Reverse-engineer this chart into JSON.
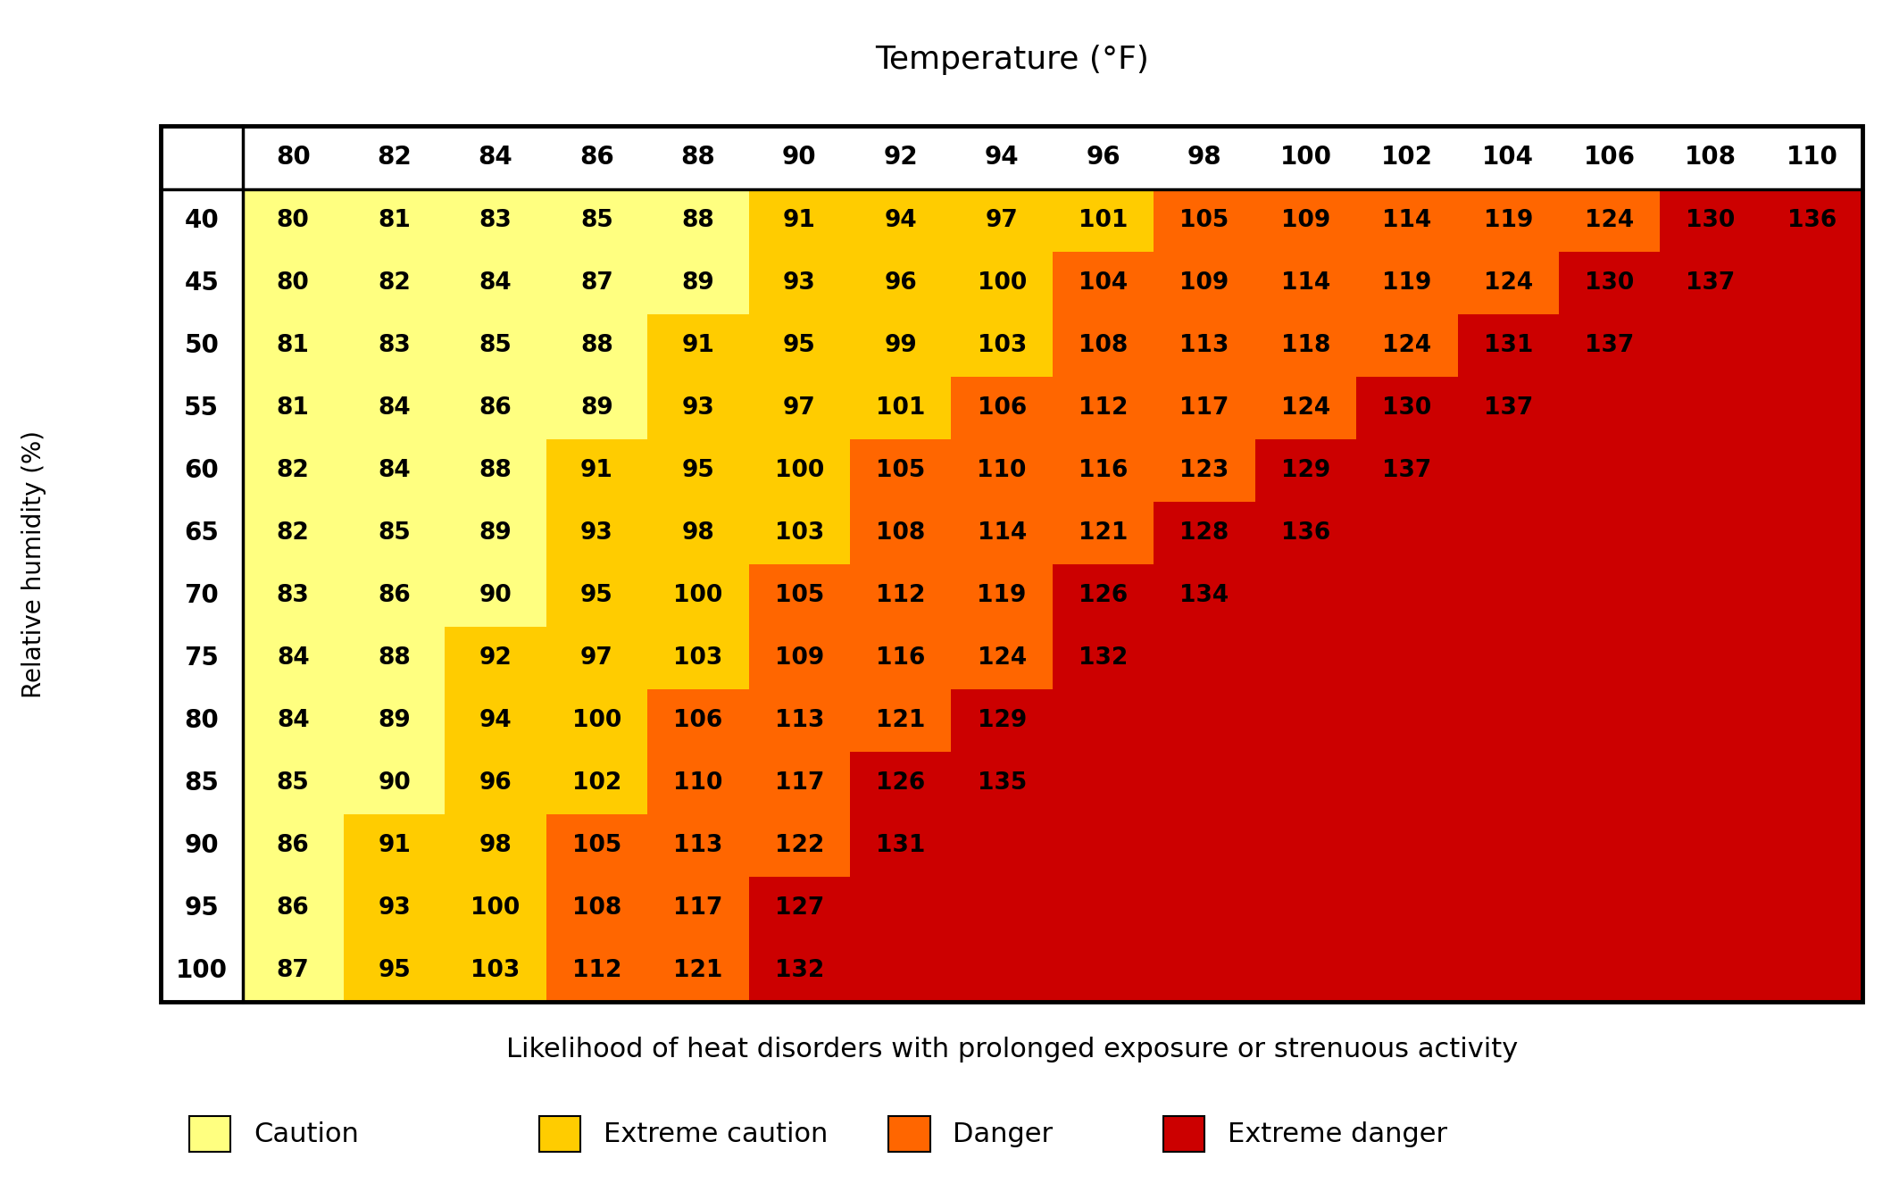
{
  "title": "Temperature (°F)",
  "ylabel": "Relative humidity (%)",
  "temp_labels": [
    80,
    82,
    84,
    86,
    88,
    90,
    92,
    94,
    96,
    98,
    100,
    102,
    104,
    106,
    108,
    110
  ],
  "humidity_labels": [
    40,
    45,
    50,
    55,
    60,
    65,
    70,
    75,
    80,
    85,
    90,
    95,
    100
  ],
  "heat_index": [
    [
      80,
      81,
      83,
      85,
      88,
      91,
      94,
      97,
      101,
      105,
      109,
      114,
      119,
      124,
      130,
      136
    ],
    [
      80,
      82,
      84,
      87,
      89,
      93,
      96,
      100,
      104,
      109,
      114,
      119,
      124,
      130,
      137,
      null
    ],
    [
      81,
      83,
      85,
      88,
      91,
      95,
      99,
      103,
      108,
      113,
      118,
      124,
      131,
      137,
      null,
      null
    ],
    [
      81,
      84,
      86,
      89,
      93,
      97,
      101,
      106,
      112,
      117,
      124,
      130,
      137,
      null,
      null,
      null
    ],
    [
      82,
      84,
      88,
      91,
      95,
      100,
      105,
      110,
      116,
      123,
      129,
      137,
      null,
      null,
      null,
      null
    ],
    [
      82,
      85,
      89,
      93,
      98,
      103,
      108,
      114,
      121,
      128,
      136,
      null,
      null,
      null,
      null,
      null
    ],
    [
      83,
      86,
      90,
      95,
      100,
      105,
      112,
      119,
      126,
      134,
      null,
      null,
      null,
      null,
      null,
      null
    ],
    [
      84,
      88,
      92,
      97,
      103,
      109,
      116,
      124,
      132,
      null,
      null,
      null,
      null,
      null,
      null,
      null
    ],
    [
      84,
      89,
      94,
      100,
      106,
      113,
      121,
      129,
      null,
      null,
      null,
      null,
      null,
      null,
      null,
      null
    ],
    [
      85,
      90,
      96,
      102,
      110,
      117,
      126,
      135,
      null,
      null,
      null,
      null,
      null,
      null,
      null,
      null
    ],
    [
      86,
      91,
      98,
      105,
      113,
      122,
      131,
      null,
      null,
      null,
      null,
      null,
      null,
      null,
      null,
      null
    ],
    [
      86,
      93,
      100,
      108,
      117,
      127,
      null,
      null,
      null,
      null,
      null,
      null,
      null,
      null,
      null,
      null
    ],
    [
      87,
      95,
      103,
      112,
      121,
      132,
      null,
      null,
      null,
      null,
      null,
      null,
      null,
      null,
      null,
      null
    ]
  ],
  "color_caution": "#FFFF80",
  "color_extreme_caution": "#FFCC00",
  "color_danger": "#FF6600",
  "color_extreme_danger": "#CC0000",
  "color_empty": "#CC0000",
  "subtitle": "Likelihood of heat disorders with prolonged exposure or strenuous activity",
  "legend_labels": [
    "Caution",
    "Extreme caution",
    "Danger",
    "Extreme danger"
  ],
  "legend_colors_display": [
    "#FFFF80",
    "#FFCC00",
    "#FF6600",
    "#CC0000"
  ],
  "caution_max": 90,
  "extreme_caution_max": 103,
  "danger_max": 124,
  "title_fontsize": 26,
  "header_fontsize": 20,
  "cell_fontsize": 19,
  "label_fontsize": 20,
  "subtitle_fontsize": 22,
  "legend_fontsize": 22
}
